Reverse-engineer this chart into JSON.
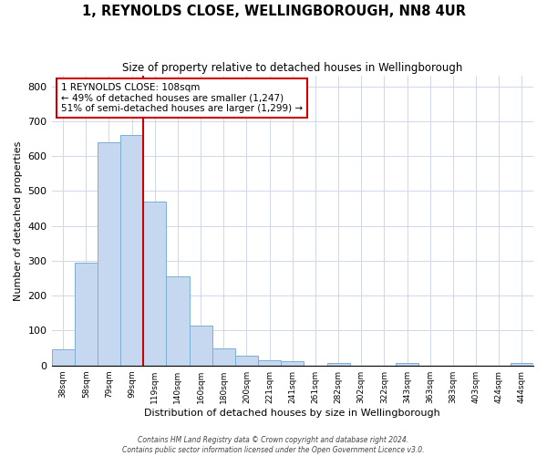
{
  "title": "1, REYNOLDS CLOSE, WELLINGBOROUGH, NN8 4UR",
  "subtitle": "Size of property relative to detached houses in Wellingborough",
  "xlabel": "Distribution of detached houses by size in Wellingborough",
  "ylabel": "Number of detached properties",
  "bar_labels": [
    "38sqm",
    "58sqm",
    "79sqm",
    "99sqm",
    "119sqm",
    "140sqm",
    "160sqm",
    "180sqm",
    "200sqm",
    "221sqm",
    "241sqm",
    "261sqm",
    "282sqm",
    "302sqm",
    "322sqm",
    "343sqm",
    "363sqm",
    "383sqm",
    "403sqm",
    "424sqm",
    "444sqm"
  ],
  "bar_values": [
    47,
    295,
    640,
    660,
    470,
    255,
    115,
    48,
    28,
    15,
    12,
    0,
    8,
    0,
    0,
    8,
    0,
    0,
    0,
    0,
    8
  ],
  "bar_color": "#c5d8f0",
  "bar_edge_color": "#7bafd4",
  "vline_x": 3.5,
  "vline_color": "#cc0000",
  "annotation_title": "1 REYNOLDS CLOSE: 108sqm",
  "annotation_line1": "← 49% of detached houses are smaller (1,247)",
  "annotation_line2": "51% of semi-detached houses are larger (1,299) →",
  "annotation_box_edge": "#cc0000",
  "ylim": [
    0,
    830
  ],
  "yticks": [
    0,
    100,
    200,
    300,
    400,
    500,
    600,
    700,
    800
  ],
  "footnote1": "Contains HM Land Registry data © Crown copyright and database right 2024.",
  "footnote2": "Contains public sector information licensed under the Open Government Licence v3.0."
}
